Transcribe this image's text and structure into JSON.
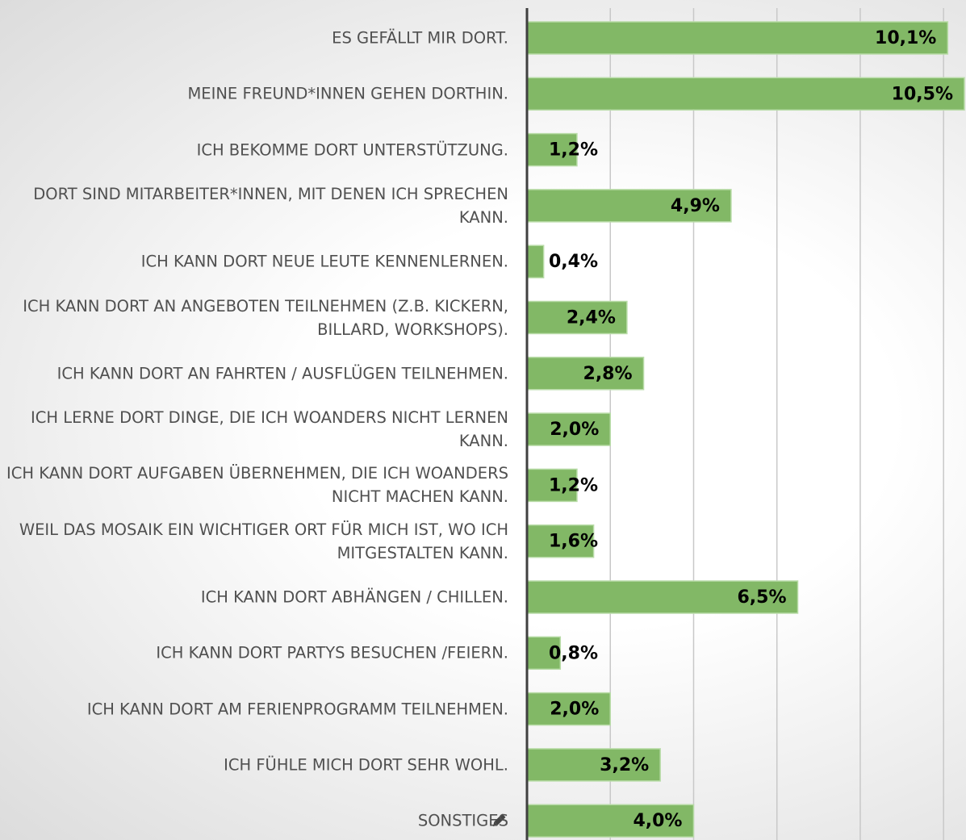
{
  "chart_data": {
    "type": "bar",
    "orientation": "horizontal",
    "categories": [
      "ES GEFÄLLT MIR DORT.",
      "MEINE FREUND*INNEN GEHEN DORTHIN.",
      "ICH BEKOMME DORT UNTERSTÜTZUNG.",
      "DORT SIND MITARBEITER*INNEN, MIT DENEN ICH SPRECHEN KANN.",
      "ICH KANN DORT NEUE LEUTE KENNENLERNEN.",
      "ICH KANN DORT AN ANGEBOTEN TEILNEHMEN (Z.B. KICKERN, BILLARD, WORKSHOPS).",
      "ICH KANN DORT AN FAHRTEN / AUSFLÜGEN TEILNEHMEN.",
      "ICH LERNE DORT DINGE, DIE ICH WOANDERS NICHT LERNEN KANN.",
      "ICH KANN DORT AUFGABEN ÜBERNEHMEN, DIE ICH WOANDERS NICHT MACHEN KANN.",
      "WEIL DAS MOSAIK EIN WICHTIGER ORT FÜR MICH IST, WO ICH MITGESTALTEN KANN.",
      "ICH KANN DORT ABHÄNGEN / CHILLEN.",
      "ICH KANN DORT PARTYS BESUCHEN /FEIERN.",
      "ICH KANN DORT AM FERIENPROGRAMM TEILNEHMEN.",
      "ICH FÜHLE MICH DORT SEHR WOHL.",
      "SONSTIGES"
    ],
    "values": [
      10.1,
      10.5,
      1.2,
      4.9,
      0.4,
      2.4,
      2.8,
      2.0,
      1.2,
      1.6,
      6.5,
      0.8,
      2.0,
      3.2,
      4.0
    ],
    "value_labels": [
      "10,1%",
      "10,5%",
      "1,2%",
      "4,9%",
      "0,4%",
      "2,4%",
      "2,8%",
      "2,0%",
      "1,2%",
      "1,6%",
      "6,5%",
      "0,8%",
      "2,0%",
      "3,2%",
      "4,0%"
    ],
    "color": "#82b866",
    "xlim": [
      0,
      10.5
    ],
    "xticks": [
      0,
      2,
      4,
      6,
      8,
      10
    ],
    "grid": true
  }
}
